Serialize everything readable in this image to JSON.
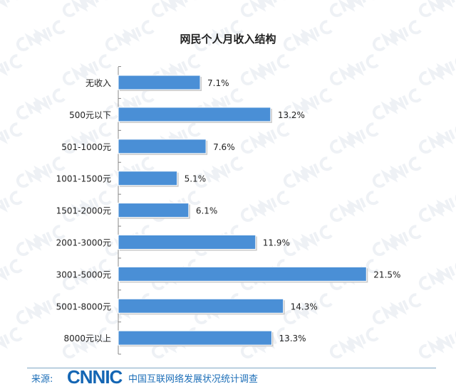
{
  "chart_data": {
    "type": "bar",
    "orientation": "horizontal",
    "title": "网民个人月收入结构",
    "categories": [
      "无收入",
      "500元以下",
      "501-1000元",
      "1001-1500元",
      "1501-2000元",
      "2001-3000元",
      "3001-5000元",
      "5001-8000元",
      "8000元以上"
    ],
    "values": [
      7.1,
      13.2,
      7.6,
      5.1,
      6.1,
      11.9,
      21.5,
      14.3,
      13.3
    ],
    "data_labels": [
      "7.1%",
      "13.2%",
      "7.6%",
      "5.1%",
      "6.1%",
      "11.9%",
      "21.5%",
      "14.3%",
      "13.3%"
    ],
    "xlabel": "",
    "ylabel": "",
    "xlim": [
      0,
      22
    ],
    "grid": false,
    "bar_color": "#4a8fd6"
  },
  "footer": {
    "source_label": "来源:",
    "logo": "CNNIC",
    "org": "中国互联网络发展状况统计调查"
  },
  "watermark": "CNNIC"
}
